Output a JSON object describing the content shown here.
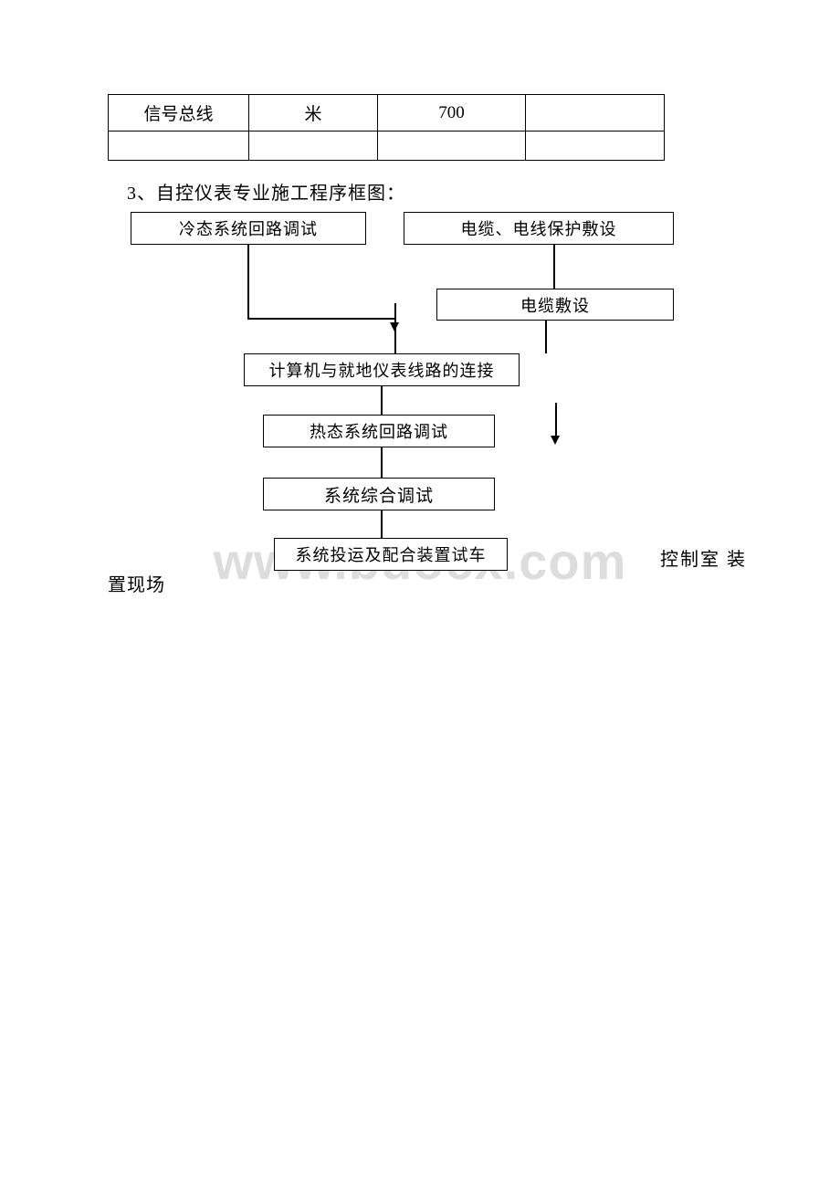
{
  "table": {
    "rows": [
      [
        "信号总线",
        "米",
        "700",
        ""
      ],
      [
        "",
        "",
        "",
        ""
      ]
    ]
  },
  "heading": "3、自控仪表专业施工程序框图：",
  "flow": {
    "cold": "冷态系统回路调试",
    "cable": "电缆、电线保护敷设",
    "lay": "电缆敷设",
    "conn": "计算机与就地仪表线路的连接",
    "hot": "热态系统回路调试",
    "comp": "系统综合调试",
    "run": "系统投运及配合装置试车"
  },
  "labels": {
    "right": "控制室 装",
    "left": "置现场"
  },
  "watermark": "www.bdocx.com"
}
